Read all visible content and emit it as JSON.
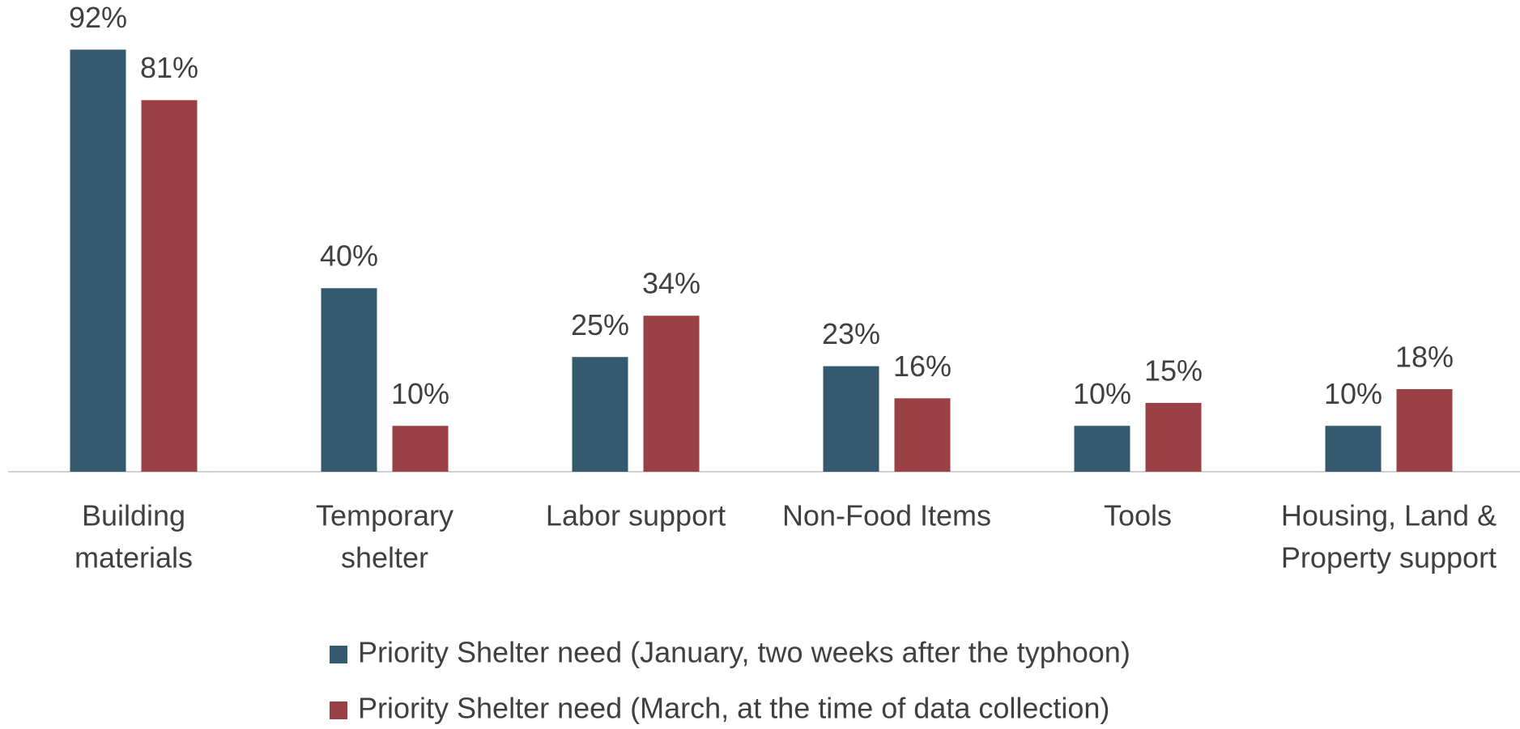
{
  "chart_data": {
    "type": "bar",
    "categories": [
      [
        "Building",
        "materials"
      ],
      [
        "Temporary",
        "shelter"
      ],
      [
        "Labor support"
      ],
      [
        "Non-Food Items"
      ],
      [
        "Tools"
      ],
      [
        "Housing, Land &",
        "Property support"
      ]
    ],
    "series": [
      {
        "name": "Priority Shelter need (January, two weeks after the typhoon)",
        "color": "#35596f",
        "values": [
          92,
          40,
          25,
          23,
          10,
          10
        ],
        "value_labels": [
          "92%",
          "40%",
          "25%",
          "23%",
          "10%",
          "10%"
        ]
      },
      {
        "name": "Priority Shelter need (March, at the time of data collection)",
        "color": "#9b4146",
        "values": [
          81,
          10,
          34,
          16,
          15,
          18
        ],
        "value_labels": [
          "81%",
          "10%",
          "34%",
          "16%",
          "15%",
          "18%"
        ]
      }
    ],
    "ylim": [
      0,
      100
    ],
    "legend": "bottom"
  }
}
